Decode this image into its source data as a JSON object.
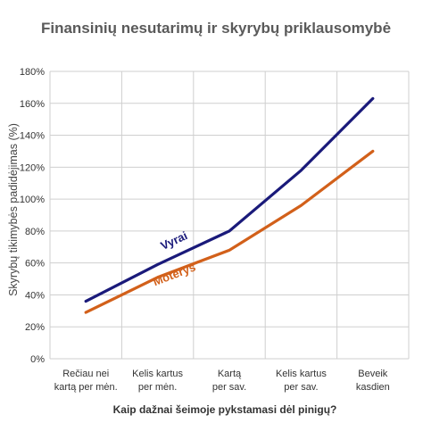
{
  "chart_data": {
    "type": "line",
    "title": "Finansinių nesutarimų ir skyrybų priklausomybė",
    "xlabel": "Kaip dažnai šeimoje pykstamasi dėl pinigų?",
    "ylabel": "Skyrybų tikimybės padidėjimas (%)",
    "categories": [
      [
        "Rečiau nei",
        "kartą per mėn."
      ],
      [
        "Kelis kartus",
        "per mėn."
      ],
      [
        "Kartą",
        "per sav."
      ],
      [
        "Kelis kartus",
        "per sav."
      ],
      [
        "Beveik",
        "kasdien"
      ]
    ],
    "y_ticks": [
      "0%",
      "20%",
      "40%",
      "60%",
      "80%",
      "100%",
      "120%",
      "140%",
      "160%",
      "180%"
    ],
    "ylim": [
      0,
      180
    ],
    "grid": true,
    "series": [
      {
        "name": "Vyrai",
        "color": "#1a1a7a",
        "values": [
          36,
          59,
          80,
          118,
          163
        ]
      },
      {
        "name": "Moterys",
        "color": "#d2601a",
        "values": [
          29,
          51,
          68,
          96,
          130
        ]
      }
    ]
  }
}
